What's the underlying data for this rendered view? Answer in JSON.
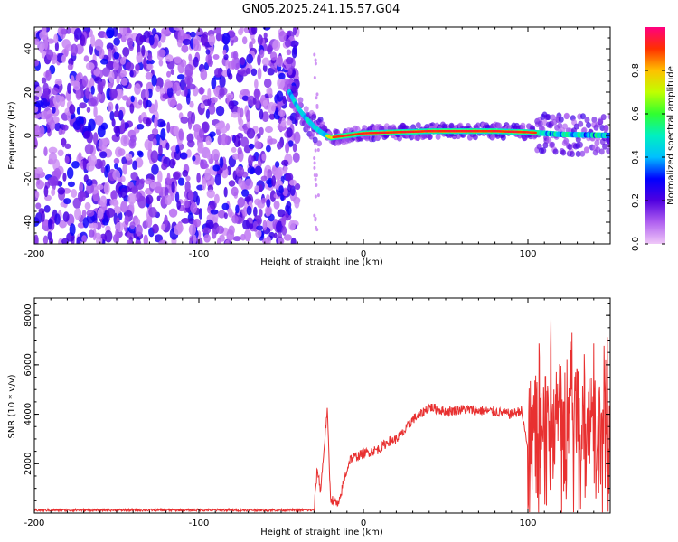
{
  "title": "GN05.2025.241.15.57.G04",
  "colors": {
    "snr_line": "#e83030",
    "axis": "#000000"
  },
  "chart_data": [
    {
      "type": "heatmap",
      "xlabel": "Height of straight line (km)",
      "ylabel": "Frequency (Hz)",
      "xlim": [
        -200,
        150
      ],
      "ylim": [
        -50,
        50
      ],
      "x_ticks": [
        -200,
        -100,
        0,
        100
      ],
      "y_ticks": [
        -40,
        -20,
        0,
        20,
        40
      ],
      "colorbar": {
        "label": "Normalized spectral amplitude",
        "range": [
          0,
          1
        ],
        "ticks": [
          0.0,
          0.2,
          0.4,
          0.6,
          0.8
        ],
        "colormap": [
          "#f0c8f8",
          "#b060f0",
          "#5000e0",
          "#0000ff",
          "#00c0ff",
          "#00f0c0",
          "#30ff30",
          "#c0ff00",
          "#ffc000",
          "#ff3000",
          "#ff0080"
        ]
      },
      "noise_region": {
        "x_range": [
          -200,
          -40
        ],
        "freq_range": [
          -50,
          50
        ],
        "amplitude": [
          0.05,
          0.3
        ]
      },
      "ridge": {
        "points": [
          [
            -45,
            20
          ],
          [
            -40,
            13
          ],
          [
            -35,
            8
          ],
          [
            -30,
            4
          ],
          [
            -25,
            1
          ],
          [
            -20,
            -1
          ],
          [
            -10,
            0
          ],
          [
            0,
            1
          ],
          [
            20,
            1.5
          ],
          [
            40,
            2
          ],
          [
            60,
            2
          ],
          [
            80,
            2
          ],
          [
            100,
            1.5
          ],
          [
            120,
            0.5
          ],
          [
            150,
            0
          ]
        ],
        "peak_amplitude": 0.95
      }
    },
    {
      "type": "line",
      "xlabel": "Height of straight line (km)",
      "ylabel": "SNR (10 * v/v)",
      "xlim": [
        -200,
        150
      ],
      "ylim": [
        0,
        8700
      ],
      "x_ticks": [
        -200,
        -100,
        0,
        100
      ],
      "y_ticks": [
        2000,
        4000,
        6000,
        8000
      ],
      "series": [
        {
          "name": "SNR",
          "profile": [
            [
              -200,
              120
            ],
            [
              -30,
              120
            ],
            [
              -28,
              1800
            ],
            [
              -26,
              900
            ],
            [
              -22,
              4200
            ],
            [
              -20,
              600
            ],
            [
              -15,
              300
            ],
            [
              -12,
              1300
            ],
            [
              -8,
              2200
            ],
            [
              0,
              2400
            ],
            [
              10,
              2600
            ],
            [
              15,
              2900
            ],
            [
              20,
              3000
            ],
            [
              25,
              3300
            ],
            [
              30,
              3800
            ],
            [
              35,
              4000
            ],
            [
              40,
              4300
            ],
            [
              50,
              4100
            ],
            [
              60,
              4200
            ],
            [
              70,
              4150
            ],
            [
              80,
              4100
            ],
            [
              90,
              4000
            ],
            [
              96,
              4150
            ],
            [
              100,
              2600
            ],
            [
              104,
              3600
            ],
            [
              110,
              4000
            ],
            [
              120,
              3800
            ],
            [
              130,
              3800
            ],
            [
              140,
              3300
            ],
            [
              150,
              3200
            ]
          ],
          "noise_amplitude": {
            "baseline": 50,
            "plateau": 200,
            "tail": 3500
          }
        }
      ]
    }
  ]
}
